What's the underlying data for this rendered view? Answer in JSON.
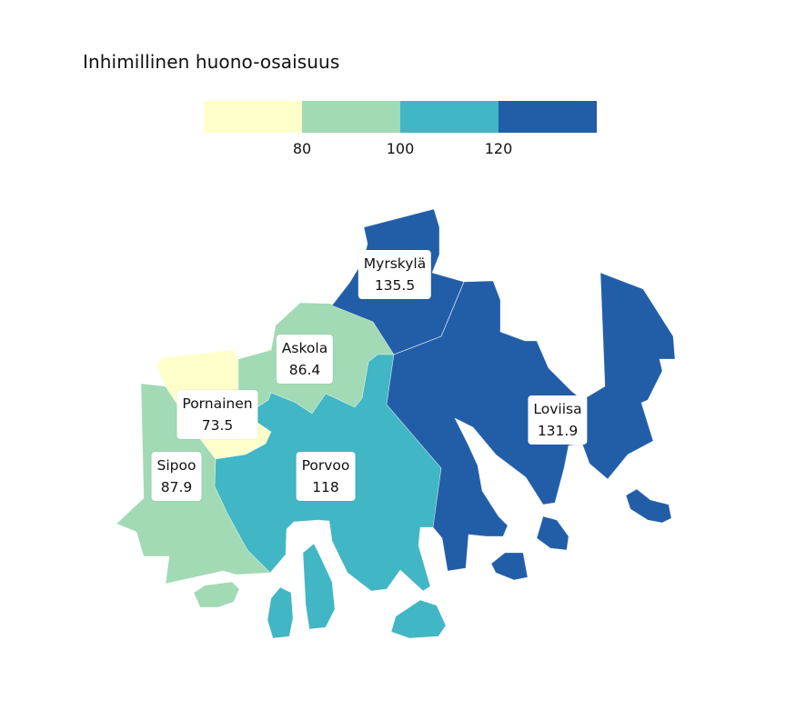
{
  "title": "Inhimillinen huono-osaisuus",
  "legend": {
    "colors": [
      "#ffffcc",
      "#a1dab4",
      "#41b6c4",
      "#225ea8"
    ],
    "ticks": [
      "80",
      "100",
      "120"
    ]
  },
  "regions": [
    {
      "name": "Myrskylä",
      "value": "135.5",
      "color": "#225ea8"
    },
    {
      "name": "Loviisa",
      "value": "131.9",
      "color": "#225ea8"
    },
    {
      "name": "Askola",
      "value": "86.4",
      "color": "#a1dab4"
    },
    {
      "name": "Pornainen",
      "value": "73.5",
      "color": "#ffffcc"
    },
    {
      "name": "Sipoo",
      "value": "87.9",
      "color": "#a1dab4"
    },
    {
      "name": "Porvoo",
      "value": "118",
      "color": "#41b6c4"
    }
  ]
}
